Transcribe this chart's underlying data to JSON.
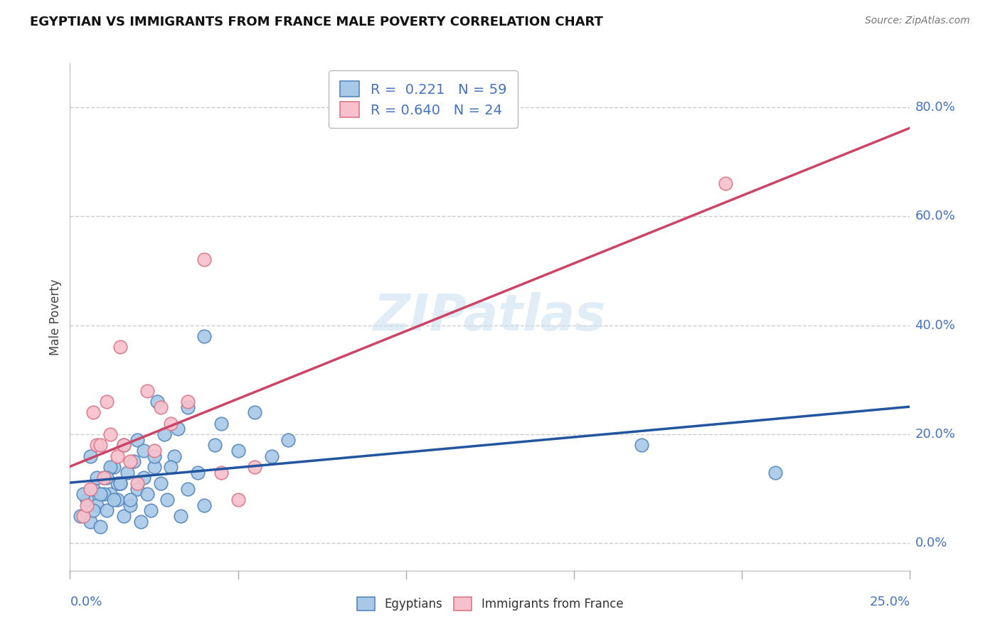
{
  "title": "EGYPTIAN VS IMMIGRANTS FROM FRANCE MALE POVERTY CORRELATION CHART",
  "source": "Source: ZipAtlas.com",
  "ylabel": "Male Poverty",
  "xlim": [
    0.0,
    25.0
  ],
  "ylim": [
    -5.0,
    88.0
  ],
  "ytick_positions": [
    0,
    20,
    40,
    60,
    80
  ],
  "ytick_labels": [
    "0.0%",
    "20.0%",
    "40.0%",
    "60.0%",
    "80.0%"
  ],
  "xtick_label_left": "0.0%",
  "xtick_label_right": "25.0%",
  "grid_color": "#cccccc",
  "bg_color": "#ffffff",
  "egyptians_face_color": "#a8c8e8",
  "egyptians_edge_color": "#5588bb",
  "immigrants_face_color": "#f8c0cc",
  "immigrants_edge_color": "#dd7788",
  "egyptians_line_color": "#2255a0",
  "immigrants_line_color": "#cc4466",
  "label_color": "#4472c4",
  "R_egyptians": 0.221,
  "N_egyptians": 59,
  "R_immigrants": 0.64,
  "N_immigrants": 24,
  "legend_label_egyptians": "Egyptians",
  "legend_label_immigrants": "Immigrants from France",
  "watermark": "ZIPatlas",
  "egyptians_x": [
    0.3,
    0.5,
    0.6,
    0.7,
    0.8,
    0.9,
    1.0,
    1.1,
    1.2,
    1.3,
    1.4,
    1.5,
    1.6,
    1.7,
    1.8,
    1.9,
    2.0,
    2.1,
    2.2,
    2.3,
    2.4,
    2.5,
    2.7,
    2.9,
    3.1,
    3.3,
    3.5,
    3.8,
    4.0,
    4.3,
    0.4,
    0.6,
    0.8,
    1.0,
    1.2,
    1.4,
    1.6,
    1.8,
    2.0,
    2.2,
    2.5,
    2.8,
    3.0,
    3.5,
    4.0,
    4.5,
    5.0,
    5.5,
    6.0,
    6.5,
    0.7,
    0.9,
    1.1,
    1.3,
    1.5,
    2.6,
    3.2,
    17.0,
    21.0
  ],
  "egyptians_y": [
    5,
    8,
    4,
    10,
    7,
    3,
    12,
    6,
    9,
    14,
    8,
    11,
    5,
    13,
    7,
    15,
    10,
    4,
    12,
    9,
    6,
    14,
    11,
    8,
    16,
    5,
    10,
    13,
    7,
    18,
    9,
    16,
    12,
    9,
    14,
    11,
    18,
    8,
    19,
    17,
    16,
    20,
    14,
    25,
    38,
    22,
    17,
    24,
    16,
    19,
    6,
    9,
    12,
    8,
    11,
    26,
    21,
    18,
    13
  ],
  "immigrants_x": [
    0.4,
    0.6,
    0.8,
    1.0,
    1.2,
    1.4,
    1.6,
    1.8,
    2.0,
    2.3,
    2.7,
    3.0,
    3.5,
    4.0,
    4.5,
    5.0,
    5.5,
    0.5,
    0.7,
    0.9,
    1.1,
    1.5,
    2.5,
    19.5
  ],
  "immigrants_y": [
    5,
    10,
    18,
    12,
    20,
    16,
    18,
    15,
    11,
    28,
    25,
    22,
    26,
    52,
    13,
    8,
    14,
    7,
    24,
    18,
    26,
    36,
    17,
    66
  ]
}
